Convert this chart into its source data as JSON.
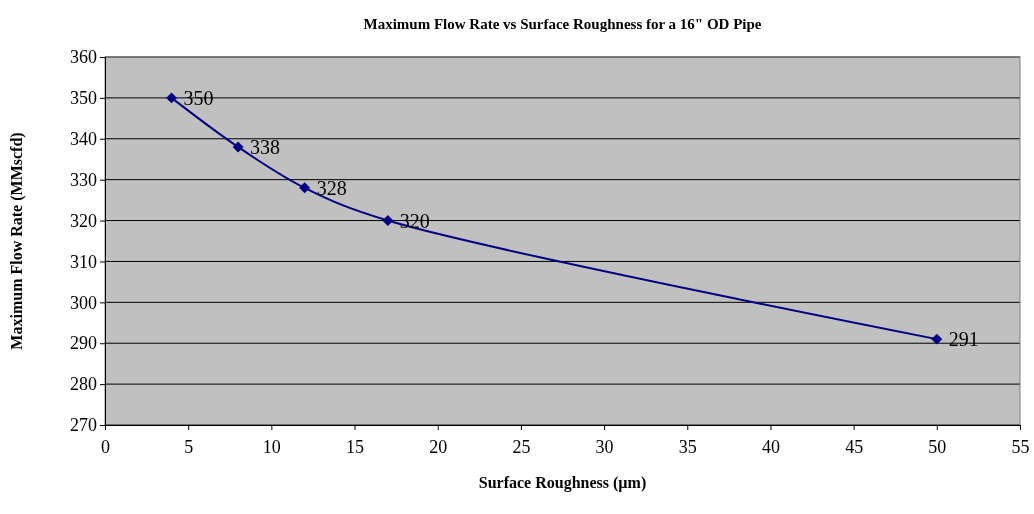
{
  "chart_data": {
    "type": "line",
    "title": "Maximum Flow Rate vs Surface Roughness for a 16\" OD Pipe",
    "xlabel": "Surface Roughness (µm)",
    "ylabel": "Maximum Flow Rate (MMscfd)",
    "x": [
      4,
      8,
      12,
      17,
      50
    ],
    "series": [
      {
        "color": "#000080",
        "values": [
          350,
          338,
          328,
          320,
          291
        ]
      }
    ],
    "xlim": [
      0,
      55
    ],
    "xticks": [
      0,
      5,
      10,
      15,
      20,
      25,
      30,
      35,
      40,
      45,
      50,
      55
    ],
    "ylim": [
      270,
      360
    ],
    "yticks": [
      270,
      280,
      290,
      300,
      310,
      320,
      330,
      340,
      350,
      360
    ],
    "grid": "y",
    "marker": "diamond",
    "line_style": "solid",
    "data_labels": true
  }
}
